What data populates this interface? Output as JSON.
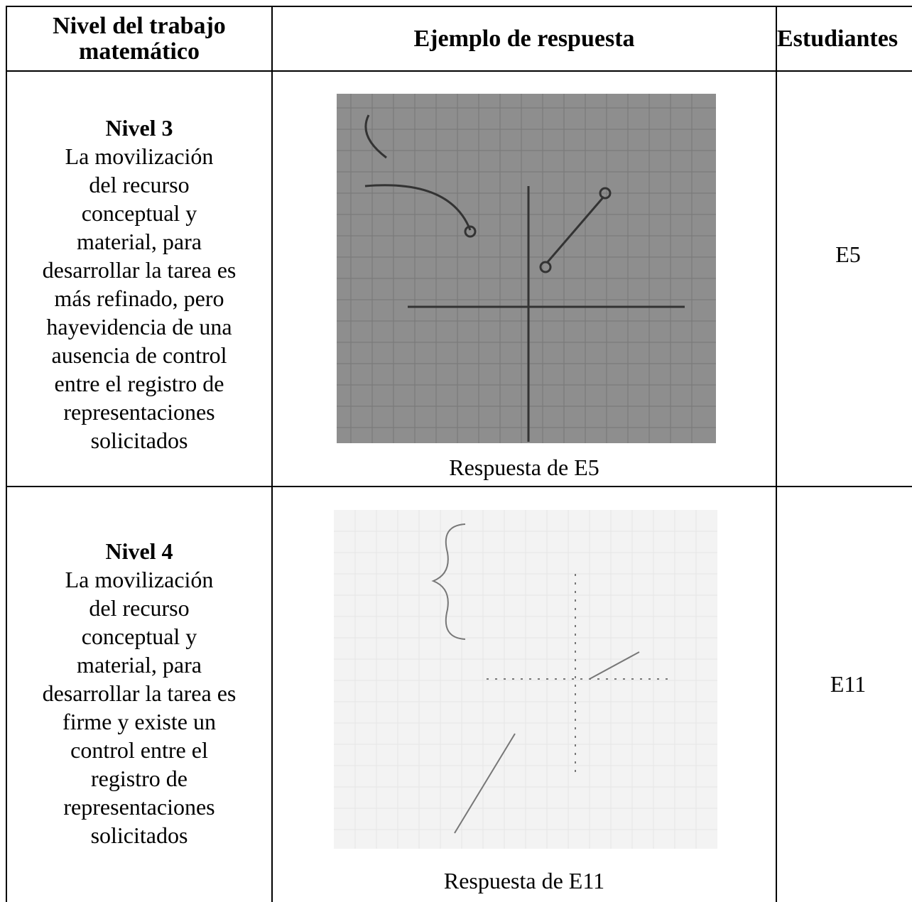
{
  "header": {
    "columns": [
      "Nivel del trabajo matemático",
      "Ejemplo de respuesta",
      "Estudiantes"
    ]
  },
  "rows": [
    {
      "level": "Nivel 3",
      "description": [
        "La movilización",
        "del recurso",
        "conceptual y",
        "material, para",
        "desarrollar la tarea es",
        "más refinado, pero",
        "hayevidencia de una",
        "ausencia de control",
        "entre el registro de",
        "representaciones",
        "solicitados"
      ],
      "caption": "Respuesta de E5",
      "student": "E5"
    },
    {
      "level": "Nivel 4",
      "description": [
        "La movilización",
        "del recurso",
        "conceptual y",
        "material, para",
        "desarrollar la tarea es",
        "firme y existe un",
        "control entre el",
        "registro de",
        "representaciones",
        "solicitados"
      ],
      "caption": "Respuesta de E11",
      "student": "E11"
    }
  ]
}
